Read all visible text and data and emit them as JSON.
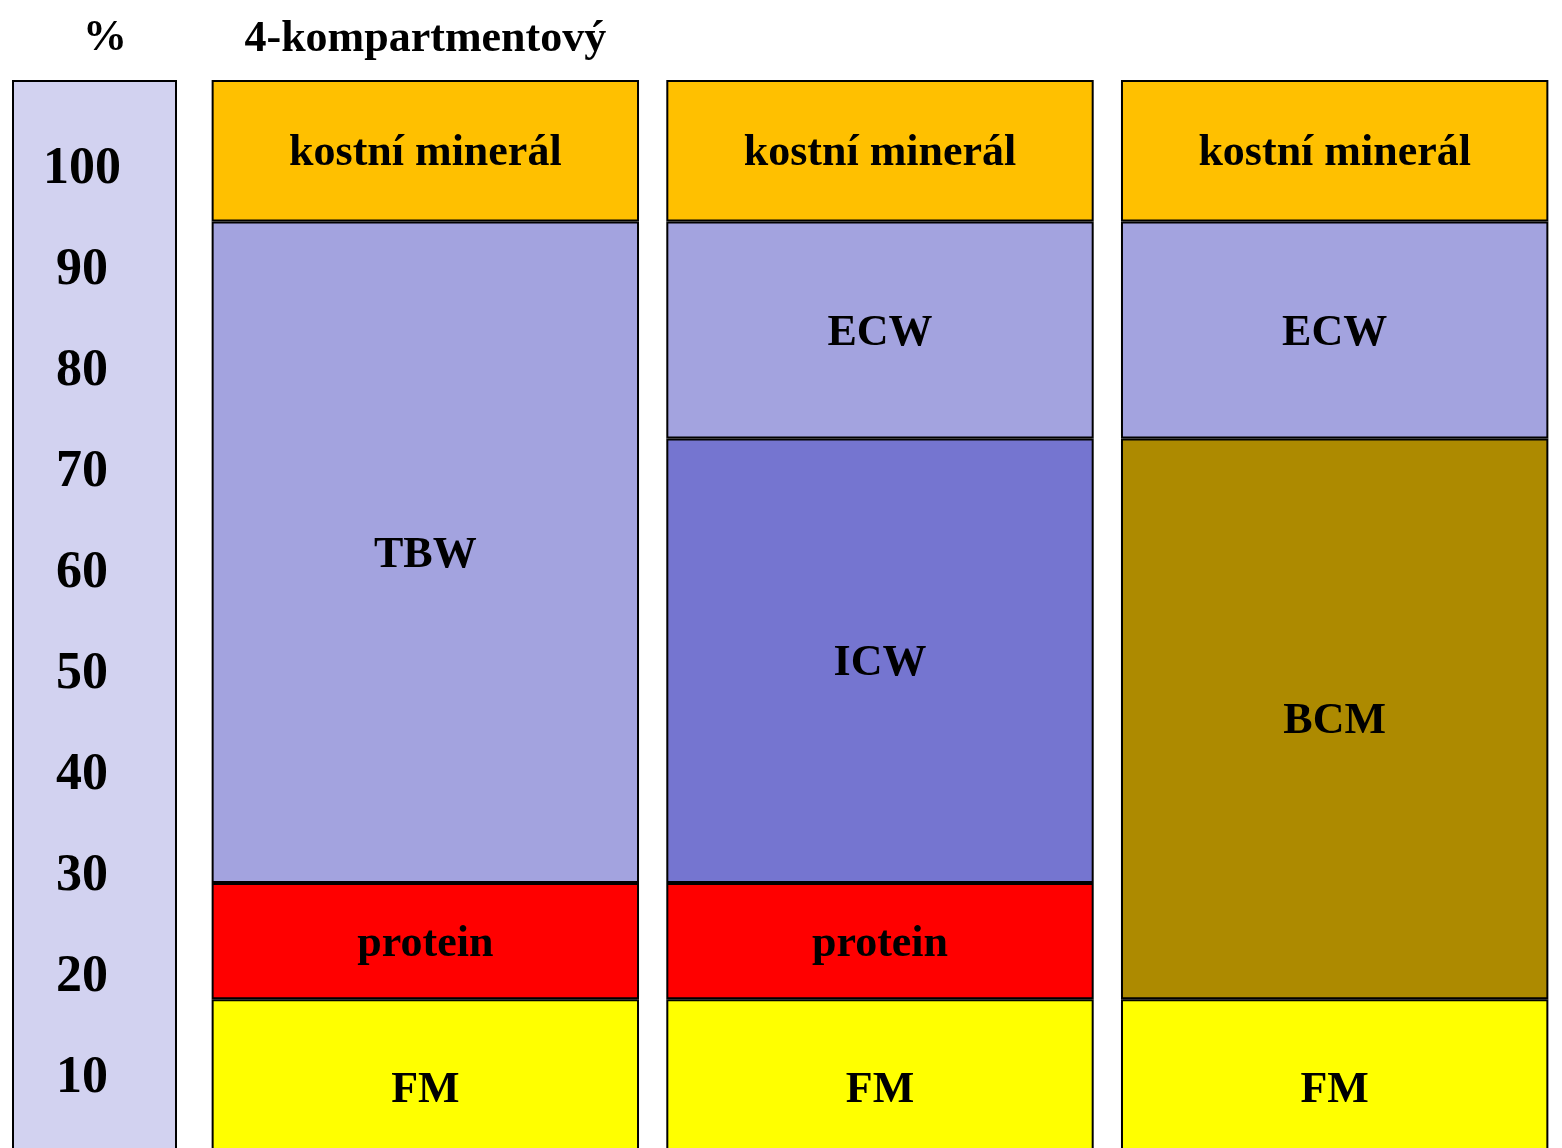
{
  "chart_data": {
    "type": "bar",
    "stacked": true,
    "ylabel": "%",
    "categories": [
      "4-kompartmentový",
      null,
      null
    ],
    "ylim": [
      0,
      108.5
    ],
    "yticks": [
      10,
      20,
      30,
      40,
      50,
      60,
      70,
      80,
      90,
      100
    ],
    "series": [
      {
        "name": "FM",
        "color": "#ffff00",
        "values": [
          17.5,
          17.5,
          17.5
        ]
      },
      {
        "name": "protein",
        "color": "#ff0000",
        "values": [
          11.5,
          11.5,
          null
        ]
      },
      {
        "name": "TBW",
        "color": "#a3a3df",
        "values": [
          65.5,
          null,
          null
        ]
      },
      {
        "name": "ICW",
        "color": "#7575d0",
        "values": [
          null,
          44,
          null
        ]
      },
      {
        "name": "BCM",
        "color": "#ad8a00",
        "values": [
          null,
          null,
          55.5
        ]
      },
      {
        "name": "ECW",
        "color": "#a3a3df",
        "values": [
          null,
          21.5,
          21.5
        ]
      },
      {
        "name": "kostní minerál",
        "color": "#ffc000",
        "values": [
          14,
          14,
          14
        ]
      }
    ]
  }
}
